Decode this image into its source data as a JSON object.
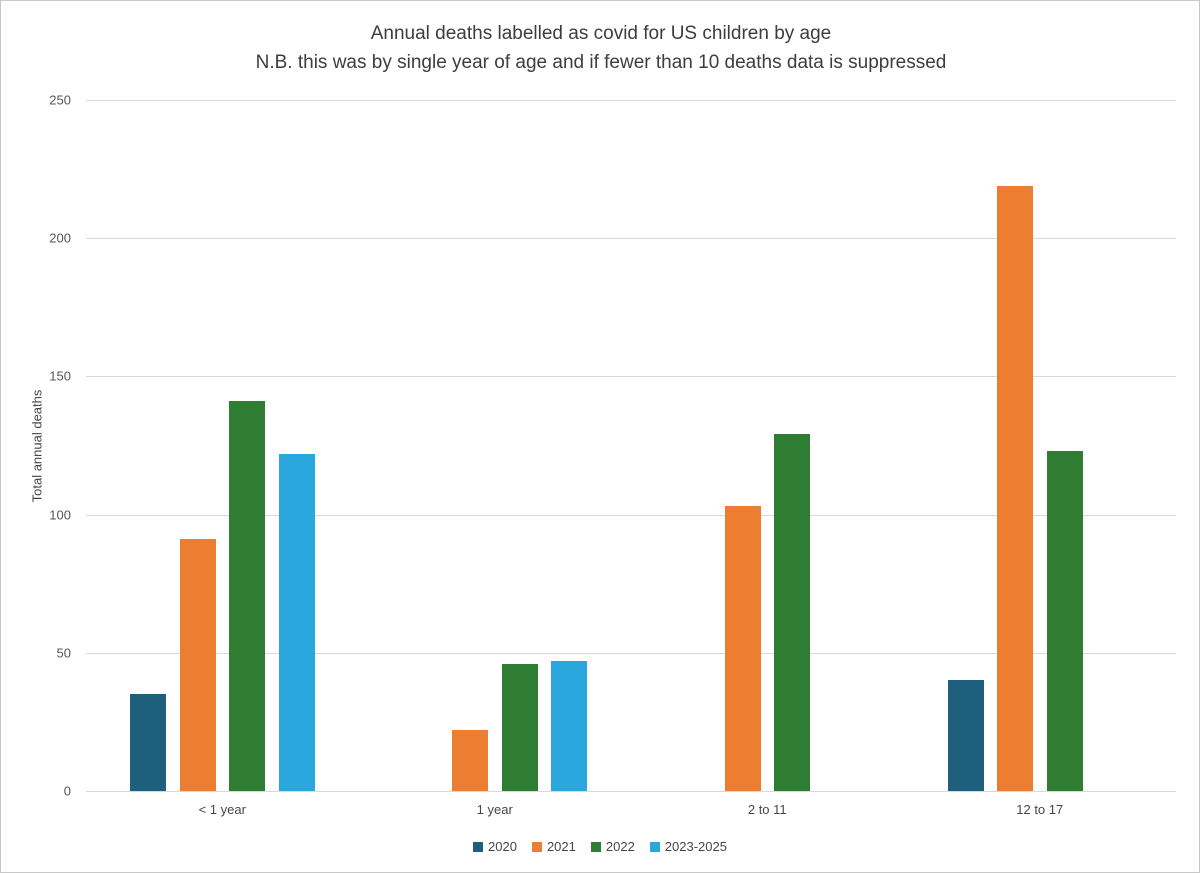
{
  "chart_data": {
    "type": "bar",
    "title": "Annual deaths labelled as covid for US children by age",
    "subtitle": "N.B. this was by single year of age and if fewer than 10 deaths data is suppressed",
    "ylabel": "Total annual deaths",
    "xlabel": "",
    "ylim": [
      0,
      250
    ],
    "ytick_step": 50,
    "grid": true,
    "legend_position": "bottom",
    "categories": [
      "< 1 year",
      "1 year",
      "2 to 11",
      "12 to 17"
    ],
    "series": [
      {
        "name": "2020",
        "color": "#1e5f7d",
        "values": [
          35,
          null,
          null,
          40
        ]
      },
      {
        "name": "2021",
        "color": "#ed7d31",
        "values": [
          91,
          22,
          103,
          219
        ]
      },
      {
        "name": "2022",
        "color": "#2e7d32",
        "values": [
          141,
          46,
          129,
          123
        ]
      },
      {
        "name": "2023-2025",
        "color": "#2aa7dd",
        "values": [
          122,
          47,
          null,
          null
        ]
      }
    ],
    "suppression_note": "missing bars = fewer than 10 deaths (suppressed)"
  }
}
